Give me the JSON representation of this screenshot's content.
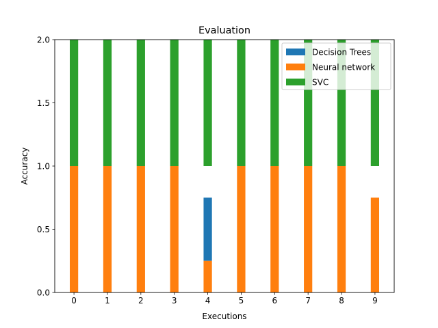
{
  "chart_data": {
    "type": "bar",
    "stacked": true,
    "title": "Evaluation",
    "xlabel": "Executions",
    "ylabel": "Accuracy",
    "categories": [
      "0",
      "1",
      "2",
      "3",
      "4",
      "5",
      "6",
      "7",
      "8",
      "9"
    ],
    "ylim": [
      0,
      2.0
    ],
    "yticks": [
      "0.0",
      "0.5",
      "1.0",
      "1.5",
      "2.0"
    ],
    "legend_position": "top-right",
    "grid": false,
    "series": [
      {
        "name": "Decision Trees",
        "color": "#1f77b4",
        "values": [
          0,
          0,
          0,
          0,
          0.5,
          0,
          0,
          0,
          0,
          0
        ]
      },
      {
        "name": "Neural network",
        "color": "#ff7f0e",
        "values": [
          1,
          1,
          1,
          1,
          0.25,
          1,
          1,
          1,
          1,
          0.75
        ]
      },
      {
        "name": "SVC",
        "color": "#2ca02c",
        "values": [
          1,
          1,
          1,
          1,
          1,
          1,
          1,
          1,
          1,
          1
        ]
      }
    ],
    "stack_bases": {
      "Decision Trees": [
        0,
        0,
        0,
        0,
        0.25,
        0,
        0,
        0,
        0,
        0
      ],
      "Neural network": [
        0,
        0,
        0,
        0,
        0,
        0,
        0,
        0,
        0,
        0
      ],
      "SVC": [
        1,
        1,
        1,
        1,
        1,
        1,
        1,
        1,
        1,
        1
      ]
    }
  }
}
